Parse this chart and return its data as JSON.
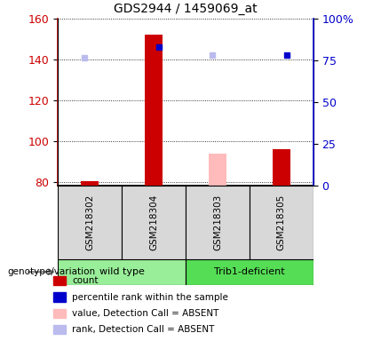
{
  "title": "GDS2944 / 1459069_at",
  "samples": [
    "GSM218302",
    "GSM218304",
    "GSM218303",
    "GSM218305"
  ],
  "bar_values_red": [
    80.5,
    152,
    null,
    96
  ],
  "bar_values_pink": [
    null,
    null,
    94,
    null
  ],
  "rank_dots_blue": [
    null,
    146,
    null,
    142
  ],
  "rank_dots_lightblue": [
    141,
    null,
    142,
    null
  ],
  "ylim_left": [
    78,
    160
  ],
  "left_ticks": [
    80,
    100,
    120,
    140,
    160
  ],
  "right_ticks": [
    0,
    25,
    50,
    75,
    100
  ],
  "right_tick_labels": [
    "0",
    "25",
    "50",
    "75",
    "100%"
  ],
  "left_color": "#cc0000",
  "right_color": "#0000cc",
  "bar_width": 0.28,
  "group_colors": [
    "#99ee99",
    "#55dd55"
  ],
  "group_labels": [
    "wild type",
    "Trib1-deficient"
  ],
  "legend_labels": [
    "count",
    "percentile rank within the sample",
    "value, Detection Call = ABSENT",
    "rank, Detection Call = ABSENT"
  ],
  "legend_colors": [
    "#cc0000",
    "#0000cc",
    "#ffbbbb",
    "#bbbbee"
  ],
  "genotype_label": "genotype/variation",
  "bg_color": "#d8d8d8",
  "plot_bg": "#ffffff",
  "dot_size": 5
}
